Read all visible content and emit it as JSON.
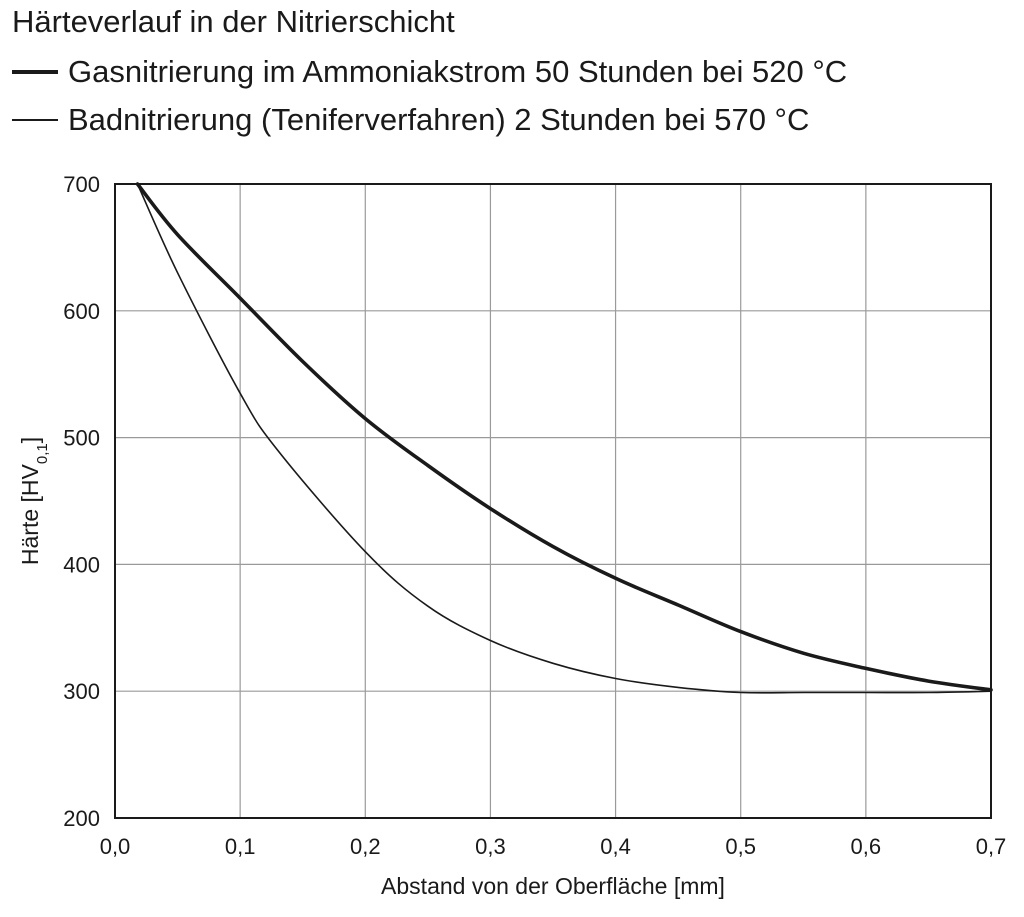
{
  "chart_data": {
    "type": "line",
    "title": "Härteverlauf in der Nitrierschicht",
    "xlabel": "Abstand von der Oberfläche [mm]",
    "ylabel_main": "Härte [HV",
    "ylabel_sub": "0,1",
    "ylabel_end": "]",
    "xlim": [
      0.0,
      0.7
    ],
    "ylim": [
      200,
      700
    ],
    "x_ticks": [
      {
        "value": 0.0,
        "label": "0,0"
      },
      {
        "value": 0.1,
        "label": "0,1"
      },
      {
        "value": 0.2,
        "label": "0,2"
      },
      {
        "value": 0.3,
        "label": "0,3"
      },
      {
        "value": 0.4,
        "label": "0,4"
      },
      {
        "value": 0.5,
        "label": "0,5"
      },
      {
        "value": 0.6,
        "label": "0,6"
      },
      {
        "value": 0.7,
        "label": "0,7"
      }
    ],
    "y_ticks": [
      {
        "value": 200,
        "label": "200"
      },
      {
        "value": 300,
        "label": "300"
      },
      {
        "value": 400,
        "label": "400"
      },
      {
        "value": 500,
        "label": "500"
      },
      {
        "value": 600,
        "label": "600"
      },
      {
        "value": 700,
        "label": "700"
      }
    ],
    "grid": true,
    "legend_position": "top-left",
    "series": [
      {
        "name": "Gasnitrierung im Ammoniakstrom 50 Stunden bei 520 °C",
        "style": "thick",
        "color": "#1a1a1a",
        "x": [
          0.018,
          0.05,
          0.1,
          0.15,
          0.2,
          0.25,
          0.3,
          0.35,
          0.4,
          0.45,
          0.5,
          0.55,
          0.6,
          0.65,
          0.7
        ],
        "y": [
          700,
          660,
          610,
          560,
          515,
          478,
          444,
          414,
          389,
          368,
          347,
          330,
          318,
          308,
          301
        ]
      },
      {
        "name": "Badnitrierung (Teniferverfahren) 2 Stunden bei 570 °C",
        "style": "thin",
        "color": "#1a1a1a",
        "x": [
          0.018,
          0.05,
          0.1,
          0.13,
          0.2,
          0.25,
          0.3,
          0.35,
          0.4,
          0.45,
          0.5,
          0.55,
          0.6,
          0.65,
          0.7
        ],
        "y": [
          700,
          630,
          535,
          490,
          410,
          367,
          340,
          322,
          310,
          303,
          299,
          299,
          299,
          299,
          300
        ]
      }
    ]
  }
}
